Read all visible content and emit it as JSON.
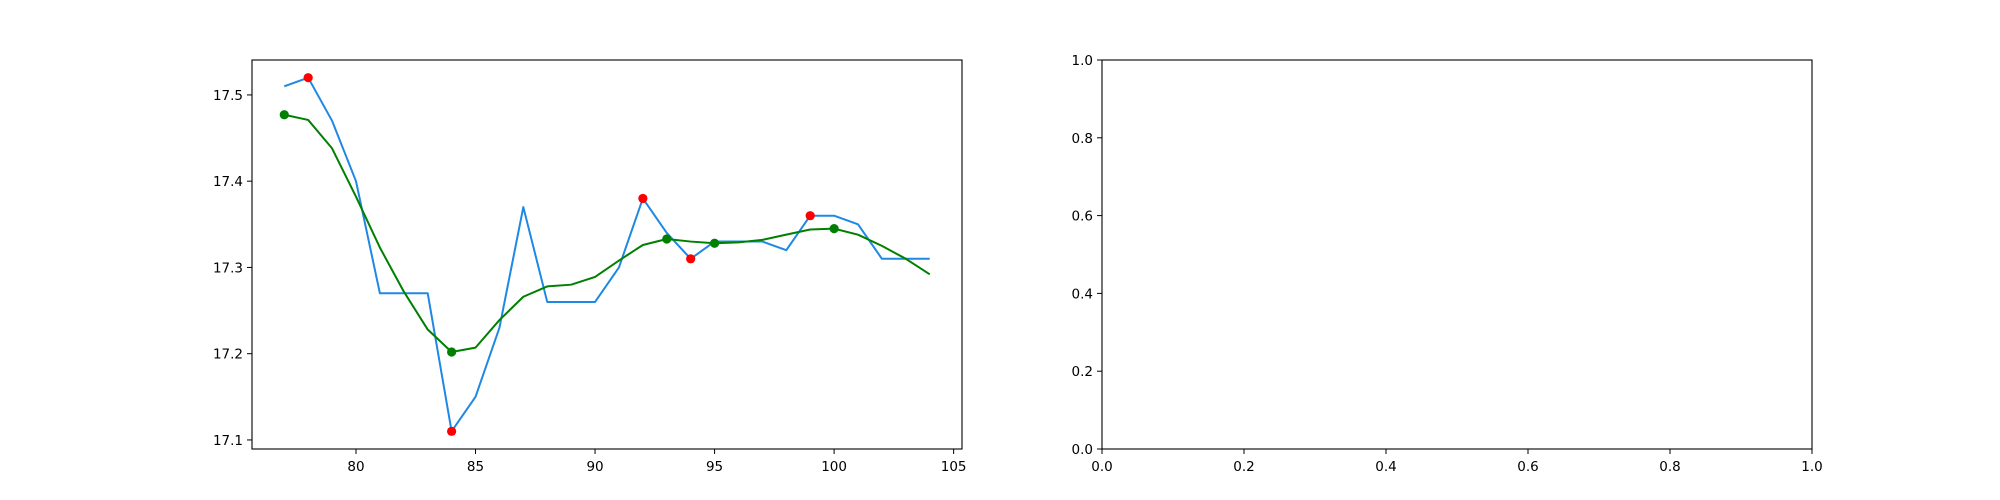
{
  "chart_data": [
    {
      "type": "line",
      "title": "",
      "xlabel": "",
      "ylabel": "",
      "xlim": [
        75.65,
        105.35
      ],
      "ylim": [
        17.0895,
        17.5405
      ],
      "xticks": [
        80,
        85,
        90,
        95,
        100,
        105
      ],
      "xtick_labels": [
        "80",
        "85",
        "90",
        "95",
        "100",
        "105"
      ],
      "yticks": [
        17.1,
        17.2,
        17.3,
        17.4,
        17.5
      ],
      "ytick_labels": [
        "17.1",
        "17.2",
        "17.3",
        "17.4",
        "17.5"
      ],
      "grid": false,
      "series": [
        {
          "color": "#1e88e5",
          "x": [
            77,
            78,
            79,
            80,
            81,
            82,
            83,
            84,
            85,
            86,
            87,
            88,
            89,
            90,
            91,
            92,
            93,
            94,
            95,
            96,
            97,
            98,
            99,
            100,
            101,
            102,
            103,
            104
          ],
          "y": [
            17.51,
            17.52,
            17.47,
            17.4,
            17.27,
            17.27,
            17.27,
            17.11,
            17.15,
            17.23,
            17.37,
            17.26,
            17.26,
            17.26,
            17.3,
            17.38,
            17.34,
            17.31,
            17.33,
            17.33,
            17.33,
            17.32,
            17.36,
            17.36,
            17.35,
            17.31,
            17.31,
            17.31
          ]
        },
        {
          "color": "#008000",
          "x": [
            77,
            78,
            79,
            80,
            81,
            82,
            83,
            84,
            85,
            86,
            87,
            88,
            89,
            90,
            91,
            92,
            93,
            94,
            95,
            96,
            97,
            98,
            99,
            100,
            101,
            102,
            103,
            104
          ],
          "y": [
            17.477,
            17.471,
            17.438,
            17.382,
            17.323,
            17.272,
            17.228,
            17.202,
            17.207,
            17.239,
            17.266,
            17.278,
            17.28,
            17.289,
            17.308,
            17.326,
            17.333,
            17.33,
            17.328,
            17.329,
            17.332,
            17.338,
            17.344,
            17.345,
            17.338,
            17.325,
            17.31,
            17.292
          ]
        }
      ],
      "markers": [
        {
          "color": "#ff0000",
          "points": [
            [
              78,
              17.52
            ],
            [
              84,
              17.11
            ],
            [
              92,
              17.38
            ],
            [
              94,
              17.31
            ],
            [
              99,
              17.36
            ]
          ]
        },
        {
          "color": "#008000",
          "points": [
            [
              77,
              17.477
            ],
            [
              84,
              17.202
            ],
            [
              93,
              17.333
            ],
            [
              95,
              17.328
            ],
            [
              100,
              17.345
            ]
          ]
        }
      ]
    },
    {
      "type": "line",
      "title": "",
      "xlabel": "",
      "ylabel": "",
      "xlim": [
        0,
        1
      ],
      "ylim": [
        0,
        1
      ],
      "xticks": [
        0,
        0.2,
        0.4,
        0.6,
        0.8,
        1.0
      ],
      "xtick_labels": [
        "0.0",
        "0.2",
        "0.4",
        "0.6",
        "0.8",
        "1.0"
      ],
      "yticks": [
        0,
        0.2,
        0.4,
        0.6,
        0.8,
        1.0
      ],
      "ytick_labels": [
        "0.0",
        "0.2",
        "0.4",
        "0.6",
        "0.8",
        "1.0"
      ],
      "grid": false,
      "series": []
    }
  ]
}
